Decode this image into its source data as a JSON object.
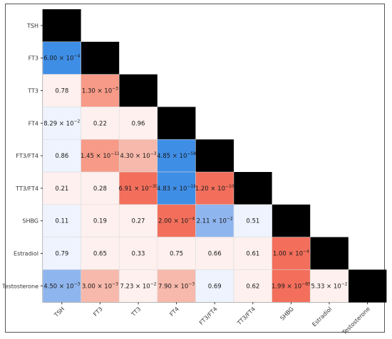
{
  "chart_data": {
    "type": "heatmap",
    "title": "",
    "xlabel": "",
    "ylabel": "",
    "labels": [
      "TSH",
      "FT3",
      "TT3",
      "FT4",
      "FT3/FT4",
      "TT3/FT4",
      "SHBG",
      "Estradiol",
      "Testosterone"
    ],
    "diagonal_color": "#000000",
    "colors": {
      "strong_negative": "#3f8ee6",
      "medium_negative": "#8fb5ee",
      "weak_negative": "#eef3fd",
      "neutral": "#fdf0ee",
      "weak_positive": "#f7b9ab",
      "medium_positive": "#f79a87",
      "strong_positive": "#f36f5c"
    },
    "cells": [
      {
        "row": "FT3",
        "col": "TSH",
        "base": "6.00",
        "exp": "−4",
        "tone": "strong_negative"
      },
      {
        "row": "TT3",
        "col": "TSH",
        "label": "0.78",
        "tone": "neutral"
      },
      {
        "row": "TT3",
        "col": "FT3",
        "base": "1.30",
        "exp": "−3",
        "tone": "medium_positive"
      },
      {
        "row": "FT4",
        "col": "TSH",
        "base": "8.29",
        "exp": "−2",
        "tone": "weak_negative"
      },
      {
        "row": "FT4",
        "col": "FT3",
        "label": "0.22",
        "tone": "neutral"
      },
      {
        "row": "FT4",
        "col": "TT3",
        "label": "0.96",
        "tone": "neutral"
      },
      {
        "row": "FT3/FT4",
        "col": "TSH",
        "label": "0.86",
        "tone": "weak_negative"
      },
      {
        "row": "FT3/FT4",
        "col": "FT3",
        "base": "1.45",
        "exp": "−11",
        "tone": "medium_positive"
      },
      {
        "row": "FT3/FT4",
        "col": "TT3",
        "base": "4.30",
        "exp": "−3",
        "tone": "weak_positive"
      },
      {
        "row": "FT3/FT4",
        "col": "FT4",
        "base": "4.85",
        "exp": "−58",
        "tone": "strong_negative"
      },
      {
        "row": "TT3/FT4",
        "col": "TSH",
        "label": "0.21",
        "tone": "neutral"
      },
      {
        "row": "TT3/FT4",
        "col": "FT3",
        "label": "0.28",
        "tone": "neutral"
      },
      {
        "row": "TT3/FT4",
        "col": "TT3",
        "base": "6.91",
        "exp": "−30",
        "tone": "strong_positive"
      },
      {
        "row": "TT3/FT4",
        "col": "FT4",
        "base": "4.83",
        "exp": "−18",
        "tone": "strong_negative"
      },
      {
        "row": "TT3/FT4",
        "col": "FT3/FT4",
        "base": "1.20",
        "exp": "−10",
        "tone": "strong_positive"
      },
      {
        "row": "SHBG",
        "col": "TSH",
        "label": "0.11",
        "tone": "weak_negative"
      },
      {
        "row": "SHBG",
        "col": "FT3",
        "label": "0.19",
        "tone": "neutral"
      },
      {
        "row": "SHBG",
        "col": "TT3",
        "label": "0.27",
        "tone": "neutral"
      },
      {
        "row": "SHBG",
        "col": "FT4",
        "base": "2.00",
        "exp": "−4",
        "tone": "strong_positive"
      },
      {
        "row": "SHBG",
        "col": "FT3/FT4",
        "base": "2.11",
        "exp": "−2",
        "tone": "medium_negative"
      },
      {
        "row": "SHBG",
        "col": "TT3/FT4",
        "label": "0.51",
        "tone": "weak_negative"
      },
      {
        "row": "Estradiol",
        "col": "TSH",
        "label": "0.79",
        "tone": "weak_negative"
      },
      {
        "row": "Estradiol",
        "col": "FT3",
        "label": "0.65",
        "tone": "neutral"
      },
      {
        "row": "Estradiol",
        "col": "TT3",
        "label": "0.33",
        "tone": "neutral"
      },
      {
        "row": "Estradiol",
        "col": "FT4",
        "label": "0.75",
        "tone": "neutral"
      },
      {
        "row": "Estradiol",
        "col": "FT3/FT4",
        "label": "0.66",
        "tone": "neutral"
      },
      {
        "row": "Estradiol",
        "col": "TT3/FT4",
        "label": "0.61",
        "tone": "neutral"
      },
      {
        "row": "Estradiol",
        "col": "SHBG",
        "base": "1.00",
        "exp": "−4",
        "tone": "strong_positive"
      },
      {
        "row": "Testosterone",
        "col": "TSH",
        "base": "4.50",
        "exp": "−3",
        "tone": "medium_negative"
      },
      {
        "row": "Testosterone",
        "col": "FT3",
        "base": "3.00",
        "exp": "−3",
        "tone": "weak_positive"
      },
      {
        "row": "Testosterone",
        "col": "TT3",
        "base": "7.23",
        "exp": "−2",
        "tone": "neutral"
      },
      {
        "row": "Testosterone",
        "col": "FT4",
        "base": "7.90",
        "exp": "−3",
        "tone": "weak_positive"
      },
      {
        "row": "Testosterone",
        "col": "FT3/FT4",
        "label": "0.69",
        "tone": "weak_negative"
      },
      {
        "row": "Testosterone",
        "col": "TT3/FT4",
        "label": "0.62",
        "tone": "neutral"
      },
      {
        "row": "Testosterone",
        "col": "SHBG",
        "base": "1.99",
        "exp": "−85",
        "tone": "strong_positive"
      },
      {
        "row": "Testosterone",
        "col": "Estradiol",
        "base": "5.33",
        "exp": "−2",
        "tone": "neutral"
      }
    ]
  }
}
